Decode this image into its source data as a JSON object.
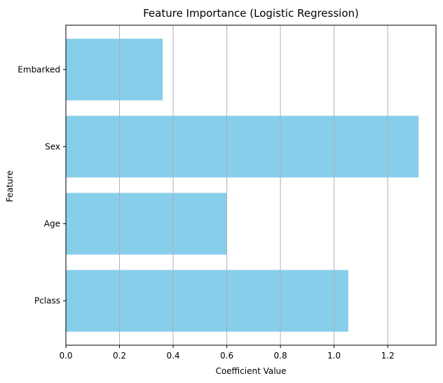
{
  "chart_data": {
    "type": "bar",
    "orientation": "horizontal",
    "title": "Feature Importance (Logistic Regression)",
    "xlabel": "Coefficient Value",
    "ylabel": "Feature",
    "categories": [
      "Pclass",
      "Age",
      "Sex",
      "Embarked"
    ],
    "values": [
      1.053,
      0.6,
      1.315,
      0.361
    ],
    "xlim": [
      0.0,
      1.38
    ],
    "xticks": [
      "0.0",
      "0.2",
      "0.4",
      "0.6",
      "0.8",
      "1.0",
      "1.2"
    ],
    "grid": "vertical",
    "bar_color": "#87ceeb"
  }
}
